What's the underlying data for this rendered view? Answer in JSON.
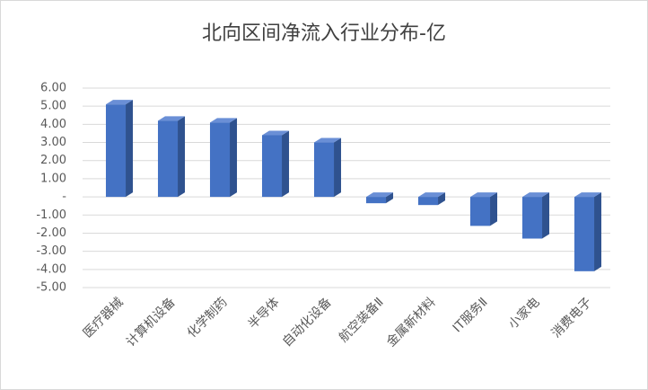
{
  "chart_data": {
    "type": "bar3d",
    "title": "北向区间净流入行业分布-亿",
    "categories": [
      "医疗器械",
      "计算机设备",
      "化学制药",
      "半导体",
      "自动化设备",
      "航空装备Ⅱ",
      "金属新材料",
      "IT服务Ⅱ",
      "小家电",
      "消费电子"
    ],
    "values": [
      5.1,
      4.2,
      4.1,
      3.4,
      3.0,
      -0.35,
      -0.45,
      -1.6,
      -2.3,
      -4.1
    ],
    "color": "#4472c4",
    "ylim": [
      -5,
      6
    ],
    "yticks": [
      {
        "value": 6,
        "label": "6.00"
      },
      {
        "value": 5,
        "label": "5.00"
      },
      {
        "value": 4,
        "label": "4.00"
      },
      {
        "value": 3,
        "label": "3.00"
      },
      {
        "value": 2,
        "label": "2.00"
      },
      {
        "value": 1,
        "label": "1.00"
      },
      {
        "value": 0,
        "label": "-"
      },
      {
        "value": -1,
        "label": "-1.00"
      },
      {
        "value": -2,
        "label": "-2.00"
      },
      {
        "value": -3,
        "label": "-3.00"
      },
      {
        "value": -4,
        "label": "-4.00"
      },
      {
        "value": -5,
        "label": "-5.00"
      }
    ],
    "grid": true
  }
}
